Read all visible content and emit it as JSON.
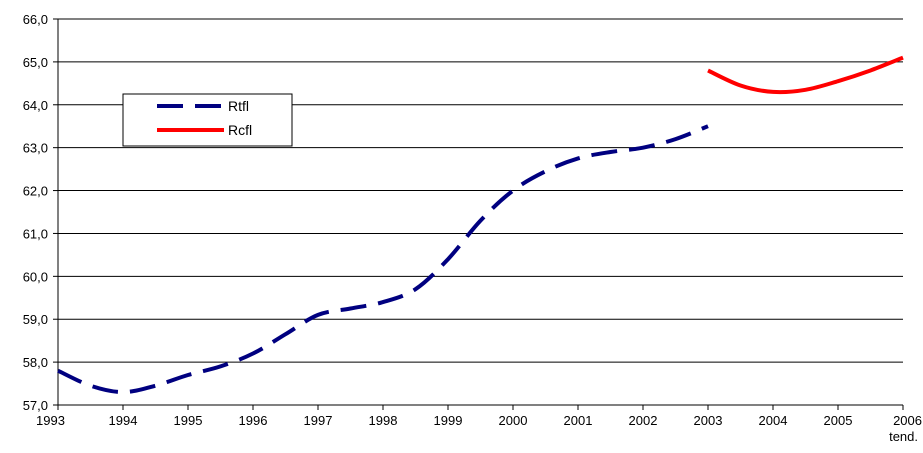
{
  "chart_data": {
    "type": "line",
    "title": "",
    "xlabel": "",
    "ylabel": "",
    "xlim": [
      1993,
      2006
    ],
    "ylim": [
      57.0,
      66.0
    ],
    "yticks": [
      "57,0",
      "58,0",
      "59,0",
      "60,0",
      "61,0",
      "62,0",
      "63,0",
      "64,0",
      "65,0",
      "66,0"
    ],
    "xticks": [
      "1993",
      "1994",
      "1995",
      "1996",
      "1997",
      "1998",
      "1999",
      "2000",
      "2001",
      "2002",
      "2003",
      "2004",
      "2005",
      "2006"
    ],
    "xtick_suffix": "tend.",
    "grid": "horizontal",
    "legend_position": "upper-left",
    "series": [
      {
        "name": "Rtfl",
        "color": "#000080",
        "style": "dashed",
        "x": [
          1993,
          1993.5,
          1994,
          1994.5,
          1995,
          1995.5,
          1996,
          1996.5,
          1997,
          1997.5,
          1998,
          1998.5,
          1999,
          1999.5,
          2000,
          2000.5,
          2001,
          2001.5,
          2002,
          2002.5,
          2003
        ],
        "values": [
          57.8,
          57.45,
          57.3,
          57.45,
          57.7,
          57.9,
          58.2,
          58.65,
          59.1,
          59.25,
          59.4,
          59.7,
          60.4,
          61.3,
          62.0,
          62.45,
          62.75,
          62.9,
          63.0,
          63.2,
          63.5
        ]
      },
      {
        "name": "Rcfl",
        "color": "#ff0000",
        "style": "solid",
        "x": [
          2003,
          2003.5,
          2004,
          2004.5,
          2005,
          2005.5,
          2006
        ],
        "values": [
          64.8,
          64.45,
          64.3,
          64.35,
          64.55,
          64.8,
          65.1
        ]
      }
    ]
  }
}
